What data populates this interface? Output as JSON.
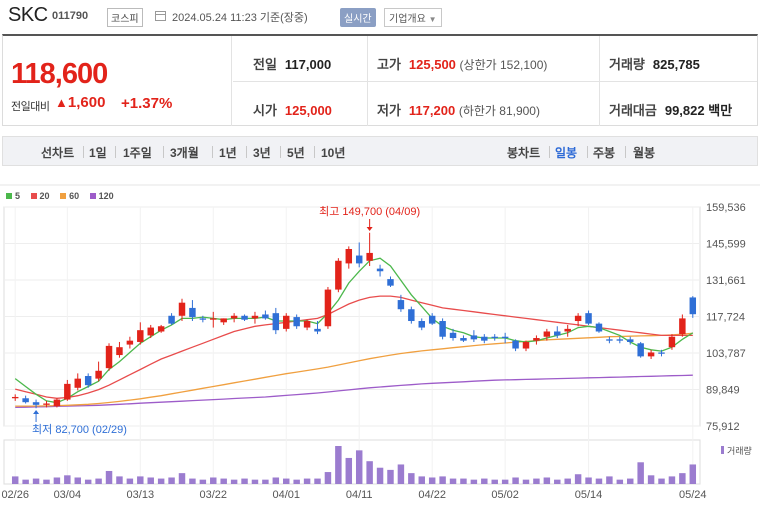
{
  "header": {
    "stock_name": "SKC",
    "stock_code": "011790",
    "market": "코스피",
    "datetime": "2024.05.24 11:23 기준(장중)",
    "realtime_label": "실시간",
    "company_overview": "기업개요"
  },
  "quote": {
    "price": "118,600",
    "change_label": "전일대비",
    "change_value": "1,600",
    "change_percent": "+1.37%",
    "prev_close_label": "전일",
    "prev_close": "117,000",
    "high_label": "고가",
    "high": "125,500",
    "upper_limit": "(상한가 152,100)",
    "volume_label": "거래량",
    "volume": "825,785",
    "open_label": "시가",
    "open": "125,000",
    "low_label": "저가",
    "low": "117,200",
    "lower_limit": "(하한가 81,900)",
    "amount_label": "거래대금",
    "amount": "99,822",
    "amount_unit": "백만"
  },
  "tabs": {
    "line_chart": "선차트",
    "periods": [
      "1일",
      "1주일",
      "3개월",
      "1년",
      "3년",
      "5년",
      "10년"
    ],
    "candle_chart": "봉차트",
    "candle_periods": [
      "일봉",
      "주봉",
      "월봉"
    ],
    "active_candle": "일봉"
  },
  "colors": {
    "up": "#e2231a",
    "down": "#2f6fd6",
    "ma5": "#4cb84c",
    "ma20": "#e84c4c",
    "ma60": "#f0a040",
    "ma120": "#9d5cc9",
    "volume": "#9b7ccf"
  },
  "chart_data": {
    "type": "candlestick",
    "legend": [
      "5",
      "20",
      "60",
      "120"
    ],
    "y_ticks": [
      "159,536",
      "145,599",
      "131,661",
      "117,724",
      "103,787",
      "89,849",
      "75,912"
    ],
    "ylim": [
      75912,
      159536
    ],
    "x_ticks": [
      "02/26",
      "03/04",
      "03/13",
      "03/22",
      "04/01",
      "04/11",
      "04/22",
      "05/02",
      "05/14",
      "05/24"
    ],
    "max_annotation": "최고 149,700 (04/09)",
    "min_annotation": "최저 82,700 (02/29)",
    "volume_label": "거래량",
    "candles": [
      {
        "o": 86500,
        "h": 88000,
        "l": 85500,
        "c": 87000
      },
      {
        "o": 86500,
        "h": 87500,
        "l": 84500,
        "c": 85000
      },
      {
        "o": 85000,
        "h": 86000,
        "l": 82700,
        "c": 84000
      },
      {
        "o": 84000,
        "h": 85500,
        "l": 83000,
        "c": 84500
      },
      {
        "o": 83500,
        "h": 86500,
        "l": 83000,
        "c": 86000
      },
      {
        "o": 86000,
        "h": 93500,
        "l": 85500,
        "c": 92000
      },
      {
        "o": 90500,
        "h": 96000,
        "l": 89500,
        "c": 94000
      },
      {
        "o": 95000,
        "h": 96000,
        "l": 90500,
        "c": 91500
      },
      {
        "o": 94000,
        "h": 100500,
        "l": 93000,
        "c": 97000
      },
      {
        "o": 98000,
        "h": 107500,
        "l": 97000,
        "c": 106500
      },
      {
        "o": 103000,
        "h": 108000,
        "l": 102000,
        "c": 106000
      },
      {
        "o": 107000,
        "h": 110000,
        "l": 105500,
        "c": 108500
      },
      {
        "o": 108000,
        "h": 115500,
        "l": 107000,
        "c": 112500
      },
      {
        "o": 110500,
        "h": 114500,
        "l": 109500,
        "c": 113500
      },
      {
        "o": 112000,
        "h": 114500,
        "l": 111500,
        "c": 114000
      },
      {
        "o": 118000,
        "h": 119000,
        "l": 114500,
        "c": 115000
      },
      {
        "o": 118000,
        "h": 124500,
        "l": 116000,
        "c": 123000
      },
      {
        "o": 121000,
        "h": 124000,
        "l": 116000,
        "c": 117500
      },
      {
        "o": 117000,
        "h": 118000,
        "l": 115500,
        "c": 116500
      },
      {
        "o": 116500,
        "h": 119500,
        "l": 113500,
        "c": 117000
      },
      {
        "o": 115500,
        "h": 117000,
        "l": 114500,
        "c": 117000
      },
      {
        "o": 117000,
        "h": 119000,
        "l": 115500,
        "c": 118000
      },
      {
        "o": 118000,
        "h": 118500,
        "l": 116000,
        "c": 116500
      },
      {
        "o": 117000,
        "h": 119500,
        "l": 115000,
        "c": 118000
      },
      {
        "o": 118500,
        "h": 120000,
        "l": 116500,
        "c": 117000
      },
      {
        "o": 119000,
        "h": 121000,
        "l": 111000,
        "c": 112500
      },
      {
        "o": 113000,
        "h": 119000,
        "l": 112000,
        "c": 118000
      },
      {
        "o": 117500,
        "h": 118500,
        "l": 113000,
        "c": 114000
      },
      {
        "o": 113500,
        "h": 116500,
        "l": 112500,
        "c": 116000
      },
      {
        "o": 113000,
        "h": 116000,
        "l": 111000,
        "c": 112000
      },
      {
        "o": 114000,
        "h": 129000,
        "l": 113000,
        "c": 128000
      },
      {
        "o": 128000,
        "h": 140000,
        "l": 127000,
        "c": 139000
      },
      {
        "o": 138000,
        "h": 144500,
        "l": 136000,
        "c": 143500
      },
      {
        "o": 141000,
        "h": 146000,
        "l": 136500,
        "c": 138000
      },
      {
        "o": 139000,
        "h": 149700,
        "l": 137000,
        "c": 142000
      },
      {
        "o": 136000,
        "h": 137500,
        "l": 133000,
        "c": 135000
      },
      {
        "o": 132000,
        "h": 133000,
        "l": 129000,
        "c": 129500
      },
      {
        "o": 124000,
        "h": 126000,
        "l": 119500,
        "c": 120500
      },
      {
        "o": 120500,
        "h": 121500,
        "l": 115000,
        "c": 116000
      },
      {
        "o": 116000,
        "h": 117000,
        "l": 112500,
        "c": 113500
      },
      {
        "o": 118000,
        "h": 119000,
        "l": 114500,
        "c": 115000
      },
      {
        "o": 116000,
        "h": 117000,
        "l": 109000,
        "c": 110000
      },
      {
        "o": 111500,
        "h": 113000,
        "l": 108500,
        "c": 109500
      },
      {
        "o": 109500,
        "h": 110500,
        "l": 108000,
        "c": 108500
      },
      {
        "o": 110500,
        "h": 112500,
        "l": 108000,
        "c": 109000
      },
      {
        "o": 110000,
        "h": 111000,
        "l": 107500,
        "c": 108500
      },
      {
        "o": 110000,
        "h": 111000,
        "l": 108500,
        "c": 109500
      },
      {
        "o": 110000,
        "h": 111500,
        "l": 107500,
        "c": 109500
      },
      {
        "o": 108500,
        "h": 109000,
        "l": 104500,
        "c": 105500
      },
      {
        "o": 105500,
        "h": 108500,
        "l": 104500,
        "c": 108000
      },
      {
        "o": 108500,
        "h": 110500,
        "l": 107000,
        "c": 109500
      },
      {
        "o": 110000,
        "h": 113000,
        "l": 108500,
        "c": 112000
      },
      {
        "o": 112000,
        "h": 114000,
        "l": 109500,
        "c": 110500
      },
      {
        "o": 112000,
        "h": 114500,
        "l": 110000,
        "c": 113000
      },
      {
        "o": 116000,
        "h": 119000,
        "l": 114000,
        "c": 118000
      },
      {
        "o": 119000,
        "h": 120000,
        "l": 114500,
        "c": 115000
      },
      {
        "o": 115000,
        "h": 115500,
        "l": 111500,
        "c": 112000
      },
      {
        "o": 109000,
        "h": 110000,
        "l": 107500,
        "c": 108500
      },
      {
        "o": 109000,
        "h": 110000,
        "l": 107500,
        "c": 108500
      },
      {
        "o": 109000,
        "h": 110000,
        "l": 107000,
        "c": 108000
      },
      {
        "o": 107500,
        "h": 108000,
        "l": 102000,
        "c": 102500
      },
      {
        "o": 102500,
        "h": 105000,
        "l": 101500,
        "c": 104000
      },
      {
        "o": 104000,
        "h": 105000,
        "l": 102500,
        "c": 103500
      },
      {
        "o": 106000,
        "h": 111000,
        "l": 105000,
        "c": 110000
      },
      {
        "o": 111000,
        "h": 118500,
        "l": 110000,
        "c": 117000
      },
      {
        "o": 125000,
        "h": 125500,
        "l": 117200,
        "c": 118600
      }
    ],
    "volume": [
      14,
      8,
      10,
      8,
      12,
      16,
      12,
      8,
      10,
      24,
      14,
      10,
      14,
      12,
      10,
      12,
      20,
      10,
      8,
      12,
      10,
      8,
      10,
      8,
      8,
      12,
      10,
      8,
      10,
      10,
      22,
      70,
      48,
      62,
      42,
      30,
      26,
      36,
      20,
      14,
      12,
      14,
      10,
      10,
      8,
      10,
      8,
      8,
      12,
      8,
      10,
      12,
      8,
      10,
      18,
      12,
      10,
      14,
      8,
      10,
      40,
      16,
      10,
      14,
      20,
      36
    ],
    "ma5": [
      94000,
      91000,
      88000,
      85500,
      84800,
      86500,
      89000,
      91000,
      93000,
      97500,
      100500,
      104000,
      107500,
      110000,
      112500,
      114500,
      117000,
      117000,
      117500,
      117000,
      116500,
      117000,
      117000,
      117000,
      117500,
      116000,
      116000,
      116000,
      116000,
      115000,
      119000,
      124000,
      130500,
      135000,
      139000,
      140000,
      137000,
      131500,
      126000,
      121500,
      117000,
      114000,
      112500,
      111500,
      110000,
      109500,
      109500,
      109500,
      108500,
      108000,
      108500,
      109500,
      110500,
      111500,
      113500,
      114000,
      113500,
      112000,
      110500,
      108000,
      106000,
      105000,
      104500,
      106000,
      109000,
      111500
    ],
    "ma20": [
      90000,
      89000,
      88000,
      87000,
      86500,
      86800,
      87500,
      88500,
      89800,
      91500,
      93500,
      95500,
      97500,
      99500,
      101500,
      103000,
      104500,
      106000,
      107500,
      109000,
      110500,
      112000,
      113000,
      114000,
      114500,
      115000,
      115500,
      116000,
      116500,
      117000,
      118500,
      120500,
      122500,
      124000,
      125000,
      125500,
      125500,
      125000,
      124000,
      123000,
      122000,
      121000,
      120500,
      120000,
      119500,
      119000,
      118500,
      118000,
      117500,
      117000,
      116500,
      116000,
      115500,
      115000,
      114500,
      114000,
      113500,
      113000,
      112500,
      112000,
      111500,
      111000,
      110500,
      110500,
      110500,
      110500
    ],
    "ma60": [
      83500,
      83500,
      83500,
      83600,
      83700,
      83800,
      84000,
      84200,
      84500,
      84900,
      85300,
      85800,
      86300,
      86900,
      87500,
      88200,
      88900,
      89600,
      90300,
      91000,
      91700,
      92400,
      93100,
      93800,
      94500,
      95200,
      95900,
      96500,
      97100,
      97700,
      98400,
      99200,
      100000,
      100800,
      101600,
      102300,
      103000,
      103600,
      104100,
      104600,
      105000,
      105400,
      105800,
      106200,
      106600,
      107000,
      107300,
      107600,
      107900,
      108200,
      108500,
      108800,
      109000,
      109200,
      109400,
      109600,
      109800,
      110000,
      110100,
      110200,
      110300,
      110400,
      110500,
      110700,
      111000,
      111300
    ],
    "ma120": [
      83000,
      83100,
      83200,
      83300,
      83400,
      83500,
      83600,
      83700,
      83800,
      84000,
      84200,
      84400,
      84600,
      84800,
      85000,
      85200,
      85400,
      85600,
      85800,
      86000,
      86200,
      86400,
      86600,
      86800,
      87000,
      87300,
      87600,
      87900,
      88200,
      88500,
      88900,
      89300,
      89700,
      90100,
      90500,
      90800,
      91100,
      91400,
      91700,
      92000,
      92200,
      92400,
      92600,
      92800,
      93000,
      93200,
      93400,
      93500,
      93600,
      93700,
      93800,
      93900,
      94000,
      94100,
      94200,
      94300,
      94400,
      94500,
      94600,
      94700,
      94800,
      94900,
      95000,
      95100,
      95200,
      95300
    ]
  }
}
